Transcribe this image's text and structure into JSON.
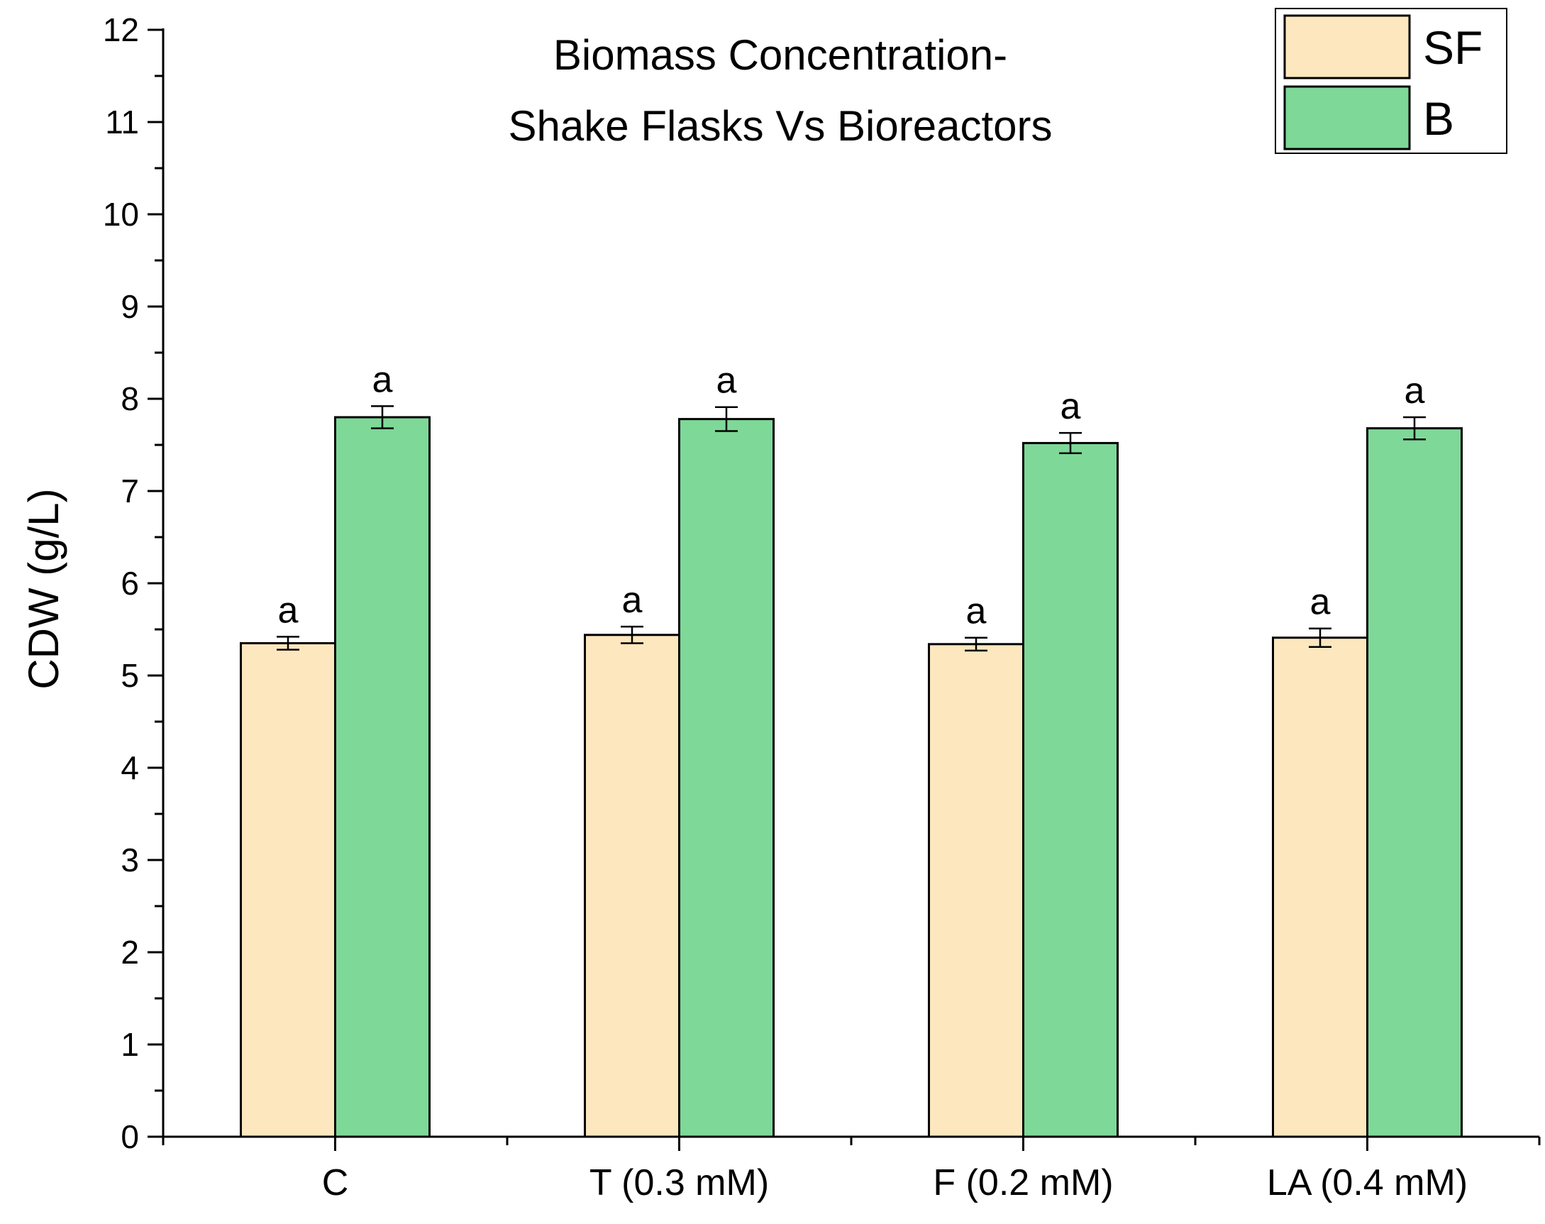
{
  "chart_data": {
    "type": "bar",
    "title": [
      "Biomass Concentration-",
      "Shake Flasks Vs Bioreactors"
    ],
    "xlabel": "",
    "ylabel": "CDW (g/L)",
    "ylim": [
      0,
      12
    ],
    "yticks": [
      0,
      1,
      2,
      3,
      4,
      5,
      6,
      7,
      8,
      9,
      10,
      11,
      12
    ],
    "categories": [
      "C",
      "T (0.3 mM)",
      "F (0.2 mM)",
      "LA (0.4 mM)"
    ],
    "series": [
      {
        "name": "SF",
        "color": "#FDE7BE",
        "values": [
          5.35,
          5.44,
          5.34,
          5.41
        ],
        "errors": [
          0.07,
          0.09,
          0.07,
          0.1
        ],
        "labels": [
          "a",
          "a",
          "a",
          "a"
        ]
      },
      {
        "name": "B",
        "color": "#7ED898",
        "values": [
          7.8,
          7.78,
          7.52,
          7.68
        ],
        "errors": [
          0.12,
          0.13,
          0.11,
          0.12
        ],
        "labels": [
          "a",
          "a",
          "a",
          "a"
        ]
      }
    ],
    "legend_position": "top-right",
    "grid": false
  }
}
